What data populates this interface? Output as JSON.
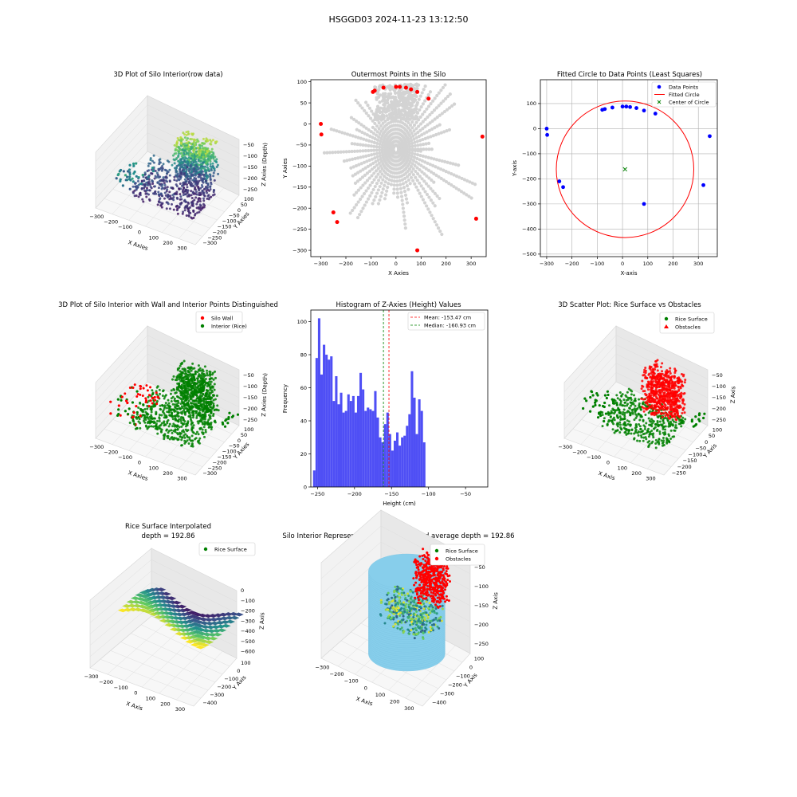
{
  "figure": {
    "suptitle": "HSGGD03 2024-11-23 13:12:50"
  },
  "colors": {
    "rice": "#008000",
    "wall": "#ff0000",
    "hist": "#4f4ff5",
    "cyl": "#87ceeb",
    "gray": "#d3d3d3",
    "blue": "#0000ff",
    "fit": "#ff0000"
  },
  "chart_data": [
    {
      "id": "p1",
      "type": "scatter3d",
      "title": "3D Plot of Silo Interior(row data)",
      "xlabel": "X Axies",
      "ylabel": "Y Axies",
      "zlabel": "Z Axies (Depth)",
      "xticks": [
        "−300",
        "−200",
        "−100",
        "0",
        "100",
        "200",
        "300"
      ],
      "yticks": [
        "100",
        "50",
        "0",
        "−50",
        "−100",
        "−150",
        "−200",
        "−250",
        "−300"
      ],
      "zticks": [
        "−50",
        "−100",
        "−150",
        "−200",
        "−250"
      ]
    },
    {
      "id": "p2",
      "type": "scatter",
      "title": "Outermost Points in the Silo",
      "xlabel": "X Axies",
      "ylabel": "Y Axies",
      "xlim": [
        -340,
        360
      ],
      "ylim": [
        -315,
        105
      ],
      "xticks": [
        -300,
        -200,
        -100,
        0,
        100,
        200,
        300
      ],
      "yticks": [
        100,
        50,
        0,
        -50,
        -100,
        -150,
        -200,
        -250,
        -300
      ],
      "outermost": [
        [
          -300,
          0
        ],
        [
          -298,
          -25
        ],
        [
          -92,
          76
        ],
        [
          -85,
          79
        ],
        [
          -50,
          86
        ],
        [
          0,
          88
        ],
        [
          15,
          88
        ],
        [
          40,
          86
        ],
        [
          60,
          82
        ],
        [
          85,
          76
        ],
        [
          130,
          60
        ],
        [
          -250,
          -210
        ],
        [
          -235,
          -233
        ],
        [
          85,
          -300
        ],
        [
          320,
          -225
        ],
        [
          345,
          -30
        ]
      ]
    },
    {
      "id": "p3",
      "type": "scatter",
      "title": "Fitted Circle to Data Points (Least Squares)",
      "xlabel": "X-axis",
      "ylabel": "Y-axis",
      "xlim": [
        -325,
        375
      ],
      "ylim": [
        -510,
        195
      ],
      "xticks": [
        -300,
        -200,
        -100,
        0,
        100,
        200,
        300
      ],
      "yticks": [
        100,
        0,
        -100,
        -200,
        -300,
        -400,
        -500
      ],
      "legend": [
        "Data Points",
        "Fitted Circle",
        "Center of Circle"
      ],
      "points": [
        [
          -300,
          0
        ],
        [
          -298,
          -25
        ],
        [
          -80,
          75
        ],
        [
          -70,
          78
        ],
        [
          -40,
          84
        ],
        [
          0,
          88
        ],
        [
          15,
          88
        ],
        [
          30,
          86
        ],
        [
          55,
          82
        ],
        [
          85,
          72
        ],
        [
          130,
          60
        ],
        [
          -250,
          -210
        ],
        [
          -235,
          -233
        ],
        [
          85,
          -300
        ],
        [
          320,
          -225
        ],
        [
          345,
          -30
        ]
      ],
      "center": [
        10,
        -162
      ],
      "radius": 272
    },
    {
      "id": "p4",
      "type": "scatter3d",
      "title": "3D Plot of Silo Interior with Wall and Interior Points Distinguished",
      "xlabel": "X Axies",
      "ylabel": "Y Axies",
      "zlabel": "Z Axies (Depth)",
      "legend": [
        "Silo Wall",
        "Interior (Rice)"
      ],
      "xticks": [
        "−300",
        "−200",
        "−100",
        "0",
        "100",
        "200",
        "300"
      ],
      "yticks": [
        "100",
        "50",
        "0",
        "−50",
        "−100",
        "−150",
        "−200",
        "−250",
        "−300"
      ],
      "zticks": [
        "−50",
        "−100",
        "−150",
        "−200",
        "−250"
      ]
    },
    {
      "id": "p5",
      "type": "bar",
      "title": "Histogram of Z-Axies (Height) Values",
      "xlabel": "Height (cm)",
      "ylabel": "Frequency",
      "xlim": [
        -259,
        -20
      ],
      "ylim": [
        0,
        107
      ],
      "xticks": [
        -250,
        -200,
        -150,
        -100,
        -50
      ],
      "yticks": [
        0,
        20,
        40,
        60,
        80,
        100
      ],
      "bin_start": -256,
      "bin_width": 3.3,
      "values": [
        10,
        78,
        102,
        68,
        86,
        80,
        77,
        79,
        52,
        67,
        50,
        57,
        45,
        46,
        56,
        52,
        55,
        45,
        55,
        69,
        59,
        46,
        48,
        47,
        46,
        58,
        42,
        30,
        27,
        38,
        45,
        32,
        22,
        28,
        33,
        25,
        30,
        31,
        37,
        44,
        70,
        54,
        32,
        53,
        46,
        27
      ],
      "mean": -153.47,
      "median": -160.93,
      "mean_label": "Mean: -153.47 cm",
      "median_label": "Median: -160.93 cm"
    },
    {
      "id": "p6",
      "type": "scatter3d",
      "title": "3D Scatter Plot: Rice Surface vs Obstacles",
      "xlabel": "X Axis",
      "ylabel": "Y Axis",
      "zlabel": "Z Axis",
      "legend": [
        "Rice Surface",
        "Obstacles"
      ],
      "xticks": [
        "−300",
        "−200",
        "−100",
        "0",
        "100",
        "200",
        "300"
      ],
      "yticks": [
        "100",
        "50",
        "0",
        "−50",
        "−100",
        "−150",
        "−200",
        "−250"
      ],
      "zticks": [
        "−50",
        "−100",
        "−150",
        "−200",
        "−250"
      ]
    },
    {
      "id": "p7",
      "type": "surface3d",
      "title_lines": [
        "Rice Surface Interpolated",
        "depth = 192.86"
      ],
      "xlabel": "X Axis",
      "ylabel": "Y Axis",
      "zlabel": "Z Axis",
      "legend": [
        "Rice Surface"
      ],
      "xticks": [
        "−300",
        "−200",
        "−100",
        "0",
        "100",
        "200",
        "300"
      ],
      "yticks": [
        "100",
        "0",
        "−100",
        "−200",
        "−300",
        "−400"
      ],
      "zticks": [
        "0",
        "−100",
        "−200",
        "−300",
        "−400",
        "−500",
        "−600"
      ]
    },
    {
      "id": "p8",
      "type": "surface3d",
      "title": "Silo Interior Representation using weighted average depth = 192.86",
      "xlabel": "X Axis",
      "ylabel": "Y Axis",
      "zlabel": "Z Axis",
      "legend": [
        "Rice Surface",
        "Obstacles"
      ],
      "xticks": [
        "−300",
        "−200",
        "−100",
        "0",
        "100",
        "200",
        "300"
      ],
      "yticks": [
        "100",
        "0",
        "−100",
        "−200",
        "−300",
        "−400"
      ],
      "zticks": [
        "−50",
        "−100",
        "−150",
        "−200",
        "−250"
      ]
    }
  ]
}
